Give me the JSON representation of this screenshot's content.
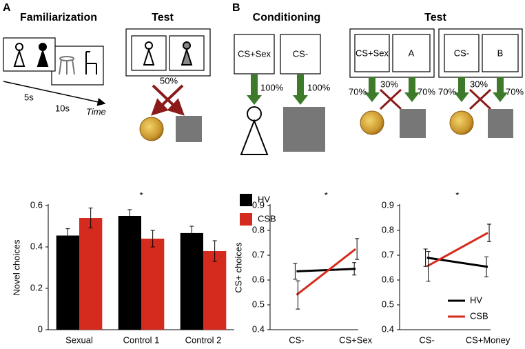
{
  "figure": {
    "panel_a": {
      "letter": "A",
      "familiarization": "Familiarization",
      "test": "Test",
      "t1": "5s",
      "t2": "10s",
      "time": "Time",
      "prob": "50%"
    },
    "panel_b": {
      "letter": "B",
      "conditioning": "Conditioning",
      "cs_sex": "CS+Sex",
      "cs_minus": "CS-",
      "p1": "100%",
      "p2": "100%",
      "test": "Test",
      "test_cs_sex": "CS+Sex",
      "test_a": "A",
      "test_cs_minus": "CS-",
      "test_b": "B",
      "q1": "70%",
      "q2": "30%",
      "q3": "70%",
      "q4": "70%",
      "q5": "30%",
      "q6": "70%"
    }
  },
  "chart_data": [
    {
      "type": "bar",
      "ylabel": "Novel choices",
      "categories": [
        "Sexual",
        "Control 1",
        "Control 2"
      ],
      "series": [
        {
          "name": "HV",
          "color": "#000000",
          "values": [
            0.455,
            0.55,
            0.467
          ],
          "errors": [
            0.033,
            0.03,
            0.033
          ]
        },
        {
          "name": "CSB",
          "color": "#d52b1e",
          "values": [
            0.54,
            0.44,
            0.38
          ],
          "errors": [
            0.048,
            0.04,
            0.05
          ]
        }
      ],
      "ylim": [
        0,
        0.6
      ],
      "yticks": [
        0,
        0.2,
        0.4,
        0.6
      ],
      "annotation": "*",
      "legend": "upper right"
    },
    {
      "type": "line",
      "ylabel": "CS+ choices",
      "categories": [
        "CS-",
        "CS+Sex"
      ],
      "series": [
        {
          "name": "HV",
          "color": "#000000",
          "values": [
            0.635,
            0.645
          ],
          "errors": [
            0.032,
            0.025
          ]
        },
        {
          "name": "CSB",
          "color": "#d52b1e",
          "values": [
            0.54,
            0.725
          ],
          "errors": [
            0.057,
            0.042
          ]
        }
      ],
      "ylim": [
        0.4,
        0.9
      ],
      "yticks": [
        0.4,
        0.5,
        0.6,
        0.7,
        0.8,
        0.9
      ],
      "annotation": "*"
    },
    {
      "type": "line",
      "categories": [
        "CS-",
        "CS+Money"
      ],
      "series": [
        {
          "name": "HV",
          "color": "#000000",
          "values": [
            0.69,
            0.653
          ],
          "errors": [
            0.035,
            0.04
          ]
        },
        {
          "name": "CSB",
          "color": "#d52b1e",
          "values": [
            0.655,
            0.79
          ],
          "errors": [
            0.06,
            0.035
          ]
        }
      ],
      "ylim": [
        0.4,
        0.9
      ],
      "yticks": [
        0.4,
        0.5,
        0.6,
        0.7,
        0.8,
        0.9
      ],
      "annotation": "*",
      "legend": "lower right"
    }
  ]
}
